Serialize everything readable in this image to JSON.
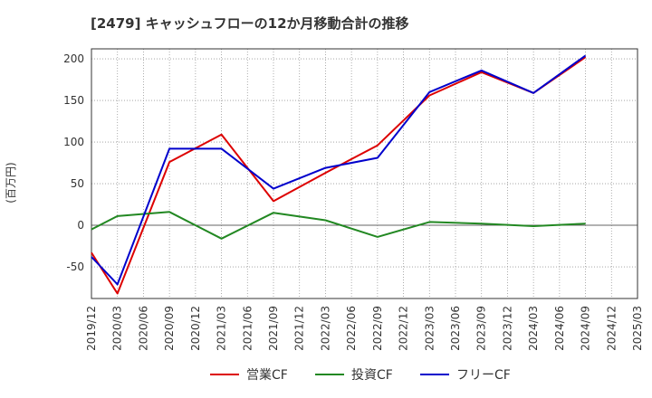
{
  "chart_data": {
    "type": "line",
    "title": "[2479]  キャッシュフローの12か月移動合計の推移",
    "xlabel": "",
    "ylabel": "(百万円)",
    "ylim": [
      -88,
      212
    ],
    "yticks": [
      200,
      150,
      100,
      50,
      0,
      -50
    ],
    "categories": [
      "2019/12",
      "2020/03",
      "2020/06",
      "2020/09",
      "2020/12",
      "2021/03",
      "2021/06",
      "2021/09",
      "2021/12",
      "2022/03",
      "2022/06",
      "2022/09",
      "2022/12",
      "2023/03",
      "2023/06",
      "2023/09",
      "2023/12",
      "2024/03",
      "2024/06",
      "2024/09",
      "2024/12",
      "2025/03"
    ],
    "series": [
      {
        "name": "営業CF",
        "color": "#dd0000",
        "values": [
          -33,
          -82,
          null,
          76,
          null,
          109,
          null,
          29,
          null,
          63,
          null,
          96,
          null,
          156,
          null,
          184,
          null,
          159,
          null,
          202,
          null,
          null
        ]
      },
      {
        "name": "投資CF",
        "color": "#228822",
        "values": [
          -5,
          11,
          null,
          16,
          null,
          -16,
          null,
          15,
          null,
          6,
          null,
          -14,
          null,
          4,
          null,
          2,
          null,
          -1,
          null,
          2,
          null,
          null
        ]
      },
      {
        "name": "フリーCF",
        "color": "#0000cc",
        "values": [
          -38,
          -71,
          null,
          92,
          null,
          92,
          null,
          44,
          null,
          69,
          null,
          81,
          null,
          160,
          null,
          186,
          null,
          159,
          null,
          204,
          null,
          null
        ]
      }
    ]
  }
}
